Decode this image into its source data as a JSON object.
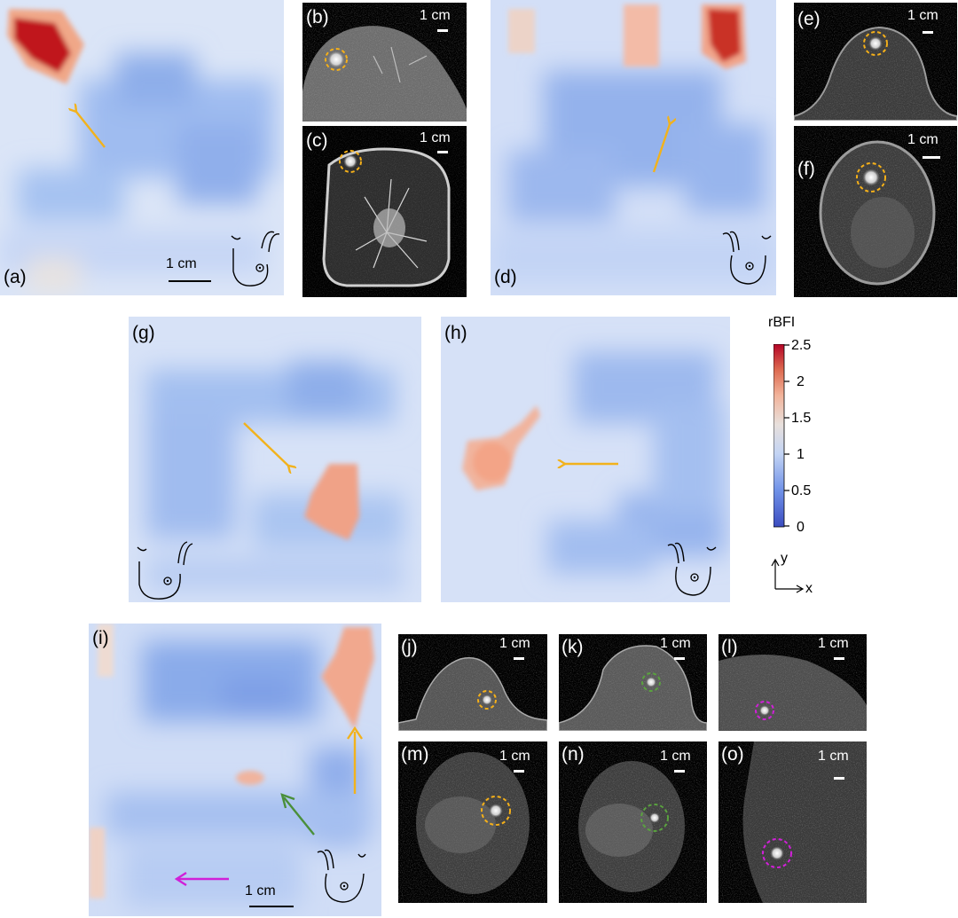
{
  "panel_labels": {
    "a": "(a)",
    "b": "(b)",
    "c": "(c)",
    "d": "(d)",
    "e": "(e)",
    "f": "(f)",
    "g": "(g)",
    "h": "(h)",
    "i": "(i)",
    "j": "(j)",
    "k": "(k)",
    "l": "(l)",
    "m": "(m)",
    "n": "(n)",
    "o": "(o)"
  },
  "scale_bar_label": "1 cm",
  "colorbar": {
    "title": "rBFI",
    "ticks": [
      "2.5",
      "2",
      "1.5",
      "1",
      "0.5",
      "0"
    ],
    "range": [
      0,
      2.5
    ],
    "colors": [
      "#3b4cc0",
      "#dddddd",
      "#b40426"
    ]
  },
  "axes_indicator": {
    "x": "x",
    "y": "y"
  },
  "annotation_colors": {
    "arrow_yellow": "#f2b21c",
    "arrow_green": "#4a8f3a",
    "arrow_magenta": "#d020d8",
    "circle_yellow": "#f5b019",
    "circle_green": "#5aa23f",
    "circle_magenta": "#d020d8"
  }
}
